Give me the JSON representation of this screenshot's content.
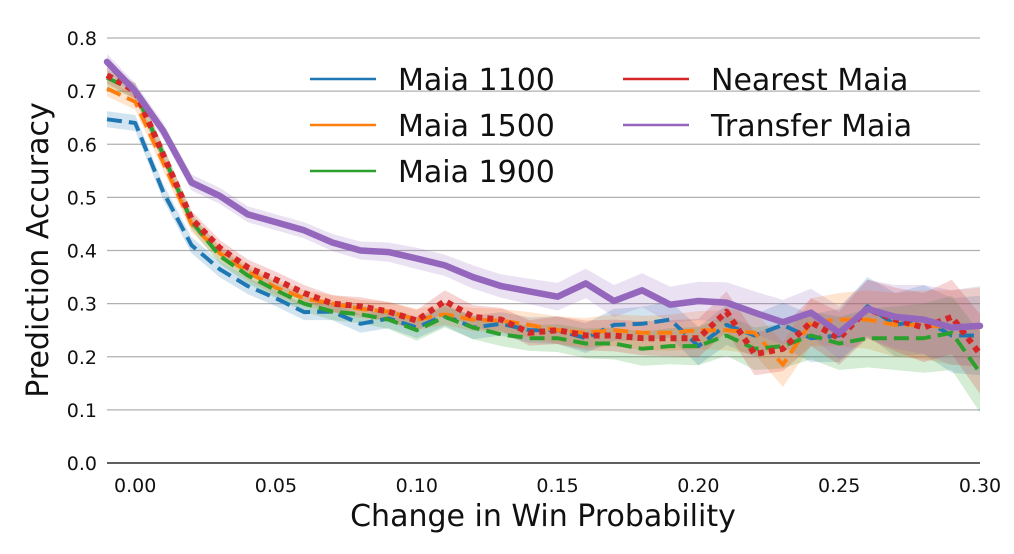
{
  "chart_data": {
    "type": "line",
    "xlabel": "Change in Win Probability",
    "ylabel": "Prediction Accuracy",
    "xlim": [
      -0.01,
      0.3
    ],
    "ylim": [
      0.0,
      0.8
    ],
    "xticks": [
      "0.00",
      "0.05",
      "0.10",
      "0.15",
      "0.20",
      "0.25",
      "0.30"
    ],
    "yticks": [
      "0.0",
      "0.1",
      "0.2",
      "0.3",
      "0.4",
      "0.5",
      "0.6",
      "0.7",
      "0.8"
    ],
    "grid": "horizontal",
    "legend_position": "top-center",
    "x": [
      -0.01,
      0.0,
      0.01,
      0.02,
      0.03,
      0.04,
      0.05,
      0.06,
      0.07,
      0.08,
      0.09,
      0.1,
      0.11,
      0.12,
      0.13,
      0.14,
      0.15,
      0.16,
      0.17,
      0.18,
      0.19,
      0.2,
      0.21,
      0.22,
      0.23,
      0.24,
      0.25,
      0.26,
      0.27,
      0.28,
      0.29,
      0.3
    ],
    "series": [
      {
        "name": "Maia 1100",
        "color": "#1f77b4",
        "style": "dashed",
        "values": [
          0.647,
          0.64,
          0.51,
          0.41,
          0.365,
          0.333,
          0.31,
          0.284,
          0.285,
          0.262,
          0.272,
          0.255,
          0.278,
          0.255,
          0.262,
          0.25,
          0.25,
          0.235,
          0.26,
          0.262,
          0.27,
          0.22,
          0.26,
          0.24,
          0.26,
          0.235,
          0.24,
          0.295,
          0.26,
          0.27,
          0.24,
          0.24
        ],
        "band": [
          0.015,
          0.015,
          0.015,
          0.015,
          0.015,
          0.015,
          0.015,
          0.015,
          0.016,
          0.017,
          0.018,
          0.02,
          0.02,
          0.022,
          0.022,
          0.024,
          0.026,
          0.028,
          0.03,
          0.032,
          0.034,
          0.036,
          0.038,
          0.04,
          0.042,
          0.045,
          0.05,
          0.055,
          0.06,
          0.065,
          0.07,
          0.075
        ]
      },
      {
        "name": "Maia 1500",
        "color": "#ff7f0e",
        "style": "dashed",
        "values": [
          0.705,
          0.68,
          0.565,
          0.45,
          0.395,
          0.36,
          0.33,
          0.31,
          0.3,
          0.29,
          0.285,
          0.27,
          0.28,
          0.27,
          0.268,
          0.26,
          0.25,
          0.245,
          0.25,
          0.245,
          0.245,
          0.25,
          0.25,
          0.245,
          0.185,
          0.265,
          0.27,
          0.27,
          0.26,
          0.26,
          0.255,
          0.255
        ],
        "band": [
          0.015,
          0.015,
          0.015,
          0.015,
          0.015,
          0.015,
          0.015,
          0.015,
          0.016,
          0.017,
          0.018,
          0.02,
          0.02,
          0.022,
          0.022,
          0.024,
          0.026,
          0.028,
          0.03,
          0.032,
          0.034,
          0.036,
          0.038,
          0.04,
          0.042,
          0.045,
          0.05,
          0.055,
          0.06,
          0.065,
          0.07,
          0.075
        ]
      },
      {
        "name": "Maia 1900",
        "color": "#2ca02c",
        "style": "dashed",
        "values": [
          0.725,
          0.7,
          0.58,
          0.455,
          0.39,
          0.353,
          0.325,
          0.3,
          0.285,
          0.28,
          0.27,
          0.25,
          0.275,
          0.255,
          0.242,
          0.235,
          0.235,
          0.225,
          0.225,
          0.215,
          0.22,
          0.22,
          0.24,
          0.215,
          0.22,
          0.24,
          0.225,
          0.235,
          0.235,
          0.235,
          0.245,
          0.17
        ],
        "band": [
          0.015,
          0.015,
          0.015,
          0.015,
          0.015,
          0.015,
          0.015,
          0.015,
          0.016,
          0.017,
          0.018,
          0.02,
          0.02,
          0.022,
          0.022,
          0.024,
          0.026,
          0.028,
          0.03,
          0.032,
          0.034,
          0.036,
          0.038,
          0.04,
          0.042,
          0.045,
          0.05,
          0.055,
          0.06,
          0.065,
          0.07,
          0.075
        ]
      },
      {
        "name": "Nearest Maia",
        "color": "#d62728",
        "style": "dotted",
        "values": [
          0.73,
          0.7,
          0.58,
          0.46,
          0.405,
          0.368,
          0.345,
          0.32,
          0.3,
          0.295,
          0.285,
          0.268,
          0.305,
          0.275,
          0.27,
          0.245,
          0.25,
          0.24,
          0.24,
          0.235,
          0.235,
          0.235,
          0.285,
          0.205,
          0.215,
          0.265,
          0.235,
          0.29,
          0.27,
          0.255,
          0.275,
          0.205
        ],
        "band": [
          0.015,
          0.015,
          0.015,
          0.015,
          0.015,
          0.015,
          0.015,
          0.015,
          0.016,
          0.017,
          0.018,
          0.02,
          0.02,
          0.022,
          0.022,
          0.024,
          0.026,
          0.028,
          0.03,
          0.032,
          0.034,
          0.036,
          0.038,
          0.04,
          0.042,
          0.045,
          0.05,
          0.055,
          0.06,
          0.065,
          0.07,
          0.075
        ]
      },
      {
        "name": "Transfer Maia",
        "color": "#9467bd",
        "style": "solid",
        "values": [
          0.755,
          0.7,
          0.625,
          0.528,
          0.503,
          0.468,
          0.453,
          0.438,
          0.415,
          0.4,
          0.397,
          0.385,
          0.372,
          0.35,
          0.333,
          0.323,
          0.313,
          0.338,
          0.305,
          0.325,
          0.298,
          0.305,
          0.302,
          0.283,
          0.265,
          0.283,
          0.245,
          0.29,
          0.275,
          0.27,
          0.255,
          0.258
        ],
        "band": [
          0.015,
          0.015,
          0.015,
          0.015,
          0.015,
          0.015,
          0.015,
          0.015,
          0.016,
          0.017,
          0.018,
          0.02,
          0.02,
          0.022,
          0.022,
          0.024,
          0.026,
          0.028,
          0.03,
          0.032,
          0.034,
          0.036,
          0.038,
          0.04,
          0.042,
          0.045,
          0.05,
          0.055,
          0.06,
          0.065,
          0.07,
          0.075
        ]
      }
    ]
  }
}
